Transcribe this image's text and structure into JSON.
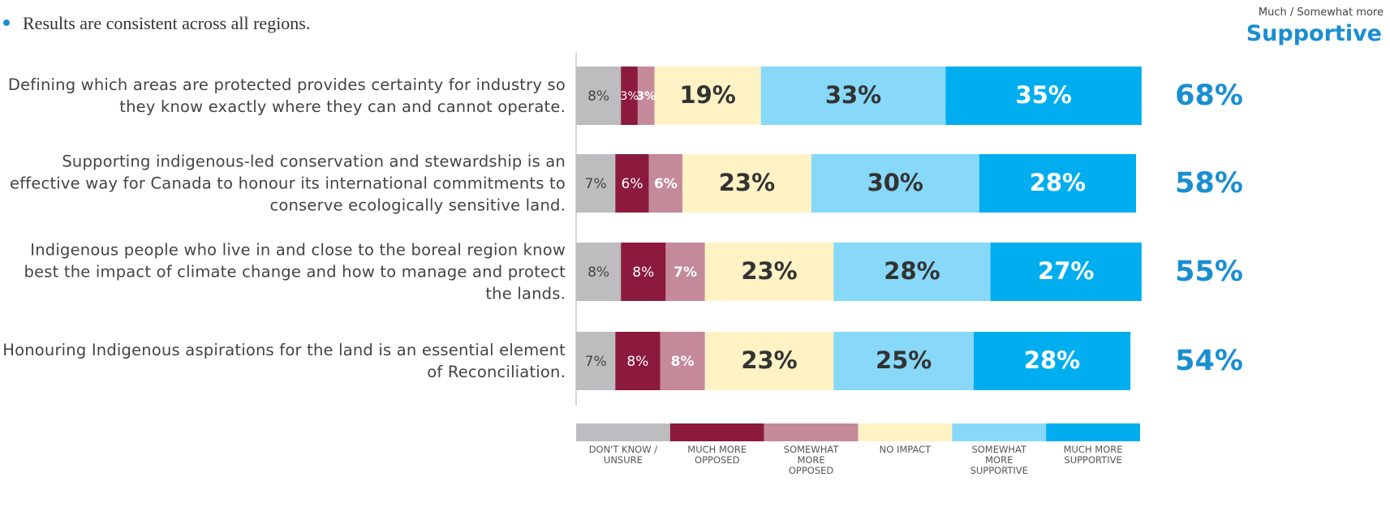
{
  "chart_data": {
    "type": "stacked-bar-horizontal",
    "note": "Results are consistent across all regions.",
    "net_header": "Much / Somewhat more",
    "net_title": "Supportive",
    "categories": [
      "Defining which areas are protected provides certainty for industry so they know exactly where they can and cannot operate.",
      "Supporting indigenous-led conservation and stewardship is an effective way for Canada to honour its international commitments to conserve ecologically sensitive land.",
      "Indigenous people who live in and close to the boreal region know best the impact of climate change and how to manage and protect the lands.",
      "Honouring Indigenous aspirations for the land is an essential element of Reconciliation."
    ],
    "xlim": [
      0,
      100
    ],
    "series": [
      {
        "name": "DON'T KNOW / UNSURE",
        "color": "#bdbdbf",
        "values": [
          8,
          7,
          8,
          7
        ],
        "value_labels": [
          "8%",
          "7%",
          "8%",
          "7%"
        ]
      },
      {
        "name": "MUCH MORE OPPOSED",
        "color": "#8b1a3d",
        "values": [
          3,
          6,
          8,
          8
        ],
        "value_labels": [
          "3%",
          "6%",
          "8%",
          "8%"
        ]
      },
      {
        "name": "SOMEWHAT MORE OPPOSED",
        "color": "#c48a9a",
        "values": [
          3,
          6,
          7,
          8
        ],
        "value_labels": [
          "3%",
          "6%",
          "7%",
          "8%"
        ]
      },
      {
        "name": "NO IMPACT",
        "color": "#fff2c4",
        "values": [
          19,
          23,
          23,
          23
        ],
        "value_labels": [
          "19%",
          "23%",
          "23%",
          "23%"
        ]
      },
      {
        "name": "SOMEWHAT MORE SUPPORTIVE",
        "color": "#87d8f9",
        "values": [
          33,
          30,
          28,
          25
        ],
        "value_labels": [
          "33%",
          "30%",
          "28%",
          "25%"
        ]
      },
      {
        "name": "MUCH MORE SUPPORTIVE",
        "color": "#00aeef",
        "values": [
          35,
          28,
          27,
          28
        ],
        "value_labels": [
          "35%",
          "28%",
          "27%",
          "28%"
        ]
      }
    ],
    "net_values": [
      68,
      58,
      55,
      54
    ],
    "net_value_labels": [
      "68%",
      "58%",
      "55%",
      "54%"
    ]
  }
}
